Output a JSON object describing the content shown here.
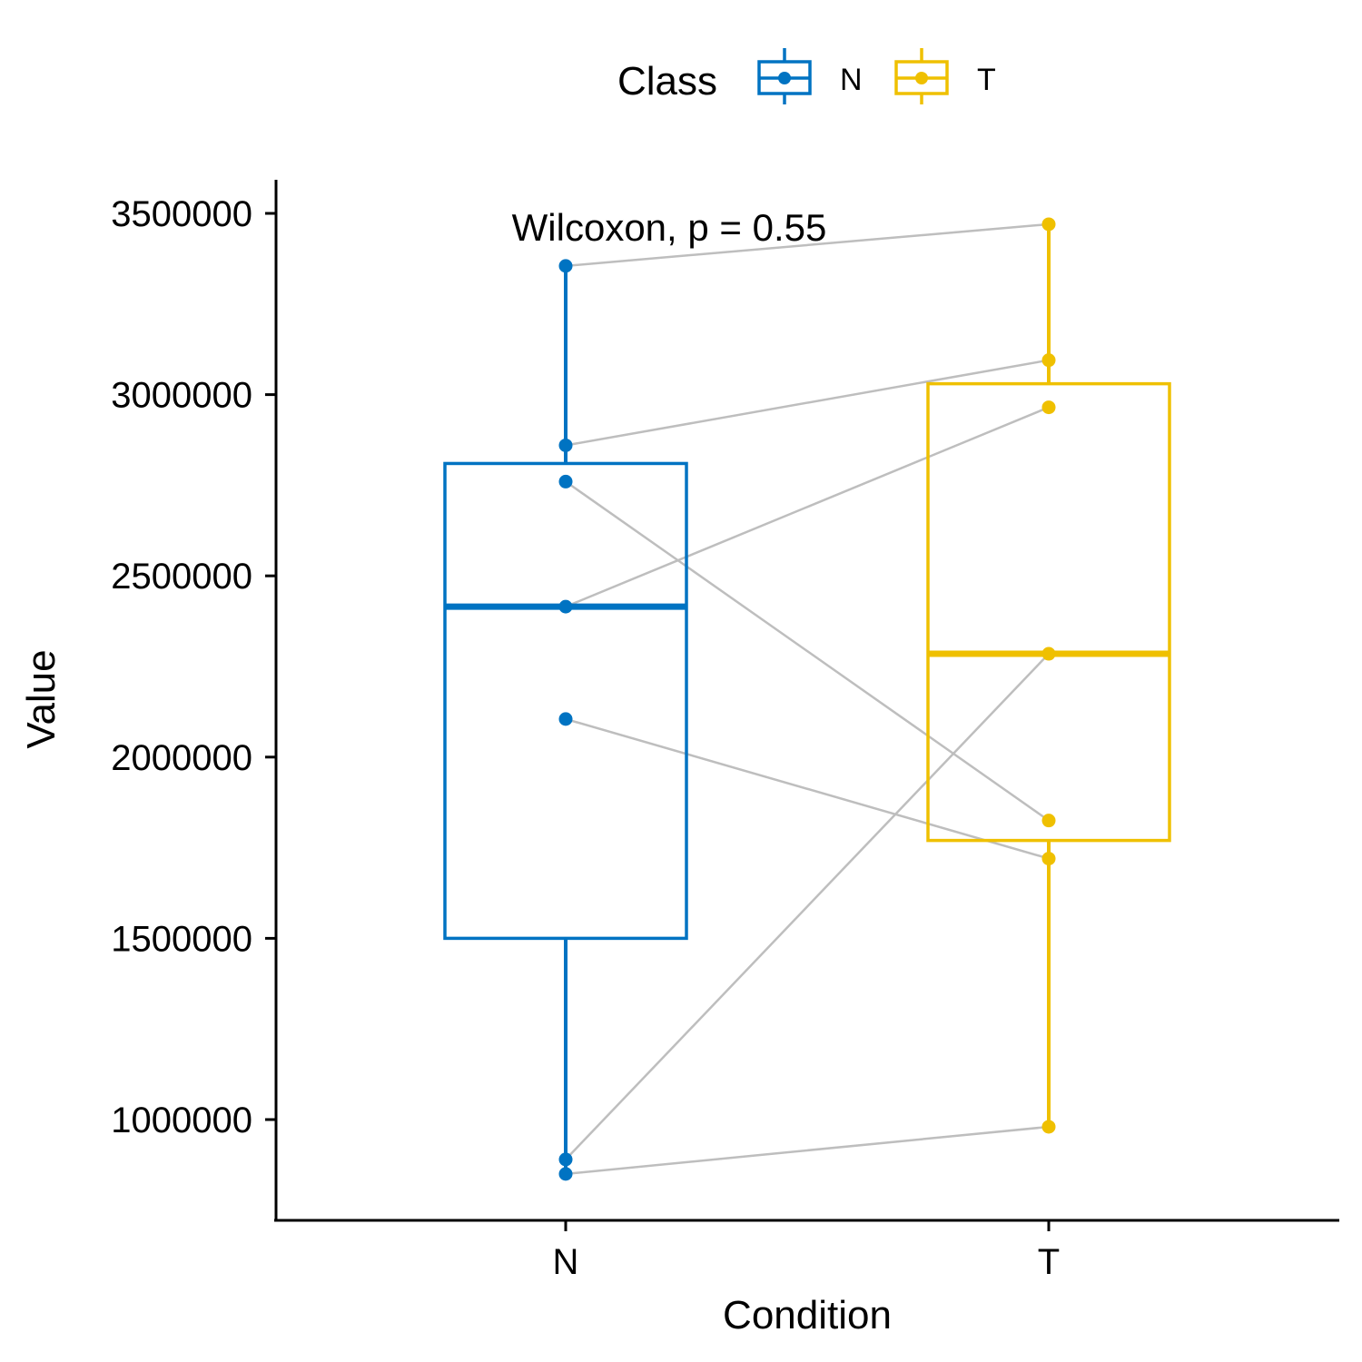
{
  "chart_data": {
    "type": "boxplot",
    "xlabel": "Condition",
    "ylabel": "Value",
    "categories": [
      "N",
      "T"
    ],
    "ylim": [
      720000,
      3600000
    ],
    "yticks": [
      1000000,
      1500000,
      2000000,
      2500000,
      3000000,
      3500000
    ],
    "ytick_labels": [
      "1000000",
      "1500000",
      "2000000",
      "2500000",
      "3000000",
      "3500000"
    ],
    "annotation": "Wilcoxon, p = 0.55",
    "legend": {
      "title": "Class",
      "position": "top",
      "entries": [
        {
          "label": "N",
          "color": "#0073C2"
        },
        {
          "label": "T",
          "color": "#EFC000"
        }
      ]
    },
    "boxes": [
      {
        "category": "N",
        "color": "#0073C2",
        "whisker_low": 850000,
        "q1": 1500000,
        "median": 2415000,
        "q3": 2810000,
        "whisker_high": 3355000
      },
      {
        "category": "T",
        "color": "#EFC000",
        "whisker_low": 980000,
        "q1": 1770000,
        "median": 2285000,
        "q3": 3030000,
        "whisker_high": 3470000
      }
    ],
    "pairs": [
      {
        "N": 3355000,
        "T": 3470000
      },
      {
        "N": 2860000,
        "T": 3095000
      },
      {
        "N": 2760000,
        "T": 1825000
      },
      {
        "N": 2415000,
        "T": 2965000
      },
      {
        "N": 2105000,
        "T": 1720000
      },
      {
        "N": 890000,
        "T": 2285000
      },
      {
        "N": 850000,
        "T": 980000
      }
    ],
    "pair_line_color": "#BEBEBE",
    "grid": false
  }
}
